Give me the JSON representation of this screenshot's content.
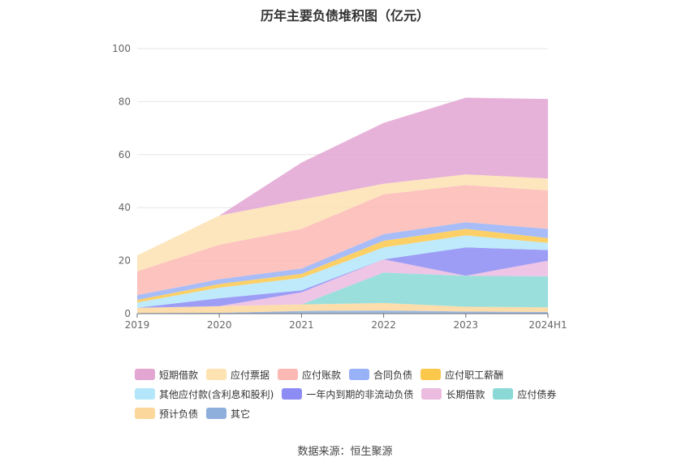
{
  "page": {
    "title": "历年主要负债堆积图（亿元）",
    "source": "数据来源：恒生聚源"
  },
  "legend_rows": [
    [
      0,
      1,
      2,
      3,
      4
    ],
    [
      5,
      6,
      7,
      8
    ],
    [
      9,
      10
    ]
  ],
  "chart_data": {
    "type": "area",
    "stacked": true,
    "title": "历年主要负债堆积图（亿元）",
    "categories": [
      "2019",
      "2020",
      "2021",
      "2022",
      "2023",
      "2024H1"
    ],
    "ylim": [
      0,
      100
    ],
    "yticks": [
      0,
      20,
      40,
      60,
      80,
      100
    ],
    "grid": true,
    "legend_position": "bottom",
    "series": [
      {
        "name": "其它",
        "color": "#8eaedc",
        "values": [
          0.2,
          0.3,
          1.0,
          1.2,
          0.8,
          0.6
        ]
      },
      {
        "name": "预计负债",
        "color": "#fcd79c",
        "values": [
          2.0,
          2.5,
          2.5,
          2.8,
          1.8,
          1.8
        ]
      },
      {
        "name": "应付债券",
        "color": "#8ad9d6",
        "values": [
          0.0,
          0.0,
          0.0,
          11.5,
          11.7,
          11.7
        ]
      },
      {
        "name": "长期借款",
        "color": "#ecbbe0",
        "values": [
          0.0,
          0.0,
          4.5,
          5.0,
          0.0,
          5.9
        ]
      },
      {
        "name": "一年内到期的非流动负债",
        "color": "#8d8cf5",
        "values": [
          0.0,
          3.0,
          0.8,
          0.0,
          10.7,
          4.0
        ]
      },
      {
        "name": "其他应付款(含利息和股利)",
        "color": "#b3e6fb",
        "values": [
          2.0,
          4.0,
          4.7,
          4.5,
          4.5,
          2.7
        ]
      },
      {
        "name": "应付职工薪酬",
        "color": "#fcc84c",
        "values": [
          1.0,
          1.4,
          1.5,
          2.5,
          2.5,
          1.8
        ]
      },
      {
        "name": "合同负债",
        "color": "#99b1f7",
        "values": [
          1.8,
          1.8,
          2.0,
          2.5,
          2.5,
          3.5
        ]
      },
      {
        "name": "应付账款",
        "color": "#fbb8b4",
        "values": [
          9.0,
          13.0,
          15.0,
          15.0,
          14.0,
          14.5
        ]
      },
      {
        "name": "应付票据",
        "color": "#fde2b2",
        "values": [
          6.0,
          11.0,
          11.0,
          4.0,
          4.0,
          4.5
        ]
      },
      {
        "name": "短期借款",
        "color": "#e3a5d2",
        "values": [
          0.0,
          0.0,
          14.0,
          23.0,
          29.0,
          30.0
        ]
      }
    ]
  }
}
